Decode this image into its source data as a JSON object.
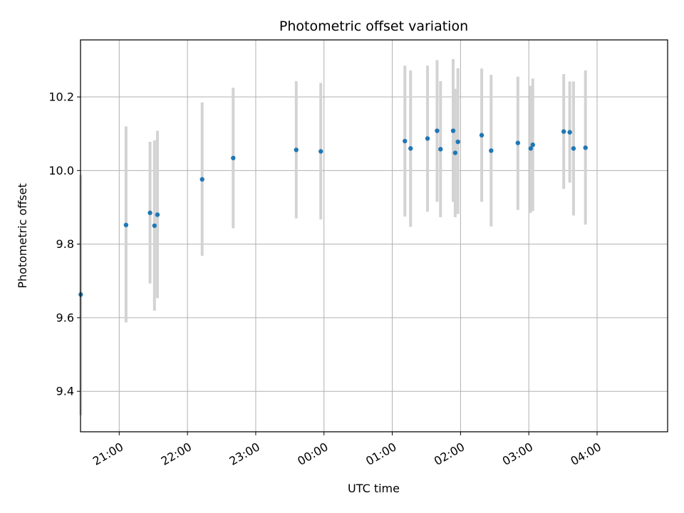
{
  "chart_data": {
    "type": "scatter",
    "title": "Photometric offset variation",
    "xlabel": "UTC time",
    "ylabel": "Photometric offset",
    "grid": true,
    "legend": "none",
    "marker_color": "#1f77b4",
    "errorbar_color": "#d3d3d3",
    "x_unit": "time of day (UTC), minutes after 20:00 on the first night shown",
    "xlim": [
      26,
      542
    ],
    "ylim": [
      9.29,
      10.355
    ],
    "x_ticks": [
      {
        "value": 60,
        "label": "21:00"
      },
      {
        "value": 120,
        "label": "22:00"
      },
      {
        "value": 180,
        "label": "23:00"
      },
      {
        "value": 240,
        "label": "00:00"
      },
      {
        "value": 300,
        "label": "01:00"
      },
      {
        "value": 360,
        "label": "02:00"
      },
      {
        "value": 420,
        "label": "03:00"
      },
      {
        "value": 480,
        "label": "04:00"
      }
    ],
    "y_ticks": [
      {
        "value": 9.4,
        "label": "9.4"
      },
      {
        "value": 9.6,
        "label": "9.6"
      },
      {
        "value": 9.8,
        "label": "9.8"
      },
      {
        "value": 10.0,
        "label": "10.0"
      },
      {
        "value": 10.2,
        "label": "10.2"
      }
    ],
    "points": [
      {
        "time": "20:26",
        "x": 26.2,
        "y": 9.663,
        "err_low": 9.335,
        "err_high": 9.988
      },
      {
        "time": "21:06",
        "x": 66.0,
        "y": 9.852,
        "err_low": 9.587,
        "err_high": 10.12
      },
      {
        "time": "21:27",
        "x": 87.1,
        "y": 9.885,
        "err_low": 9.693,
        "err_high": 10.078
      },
      {
        "time": "21:31",
        "x": 91.0,
        "y": 9.85,
        "err_low": 9.619,
        "err_high": 10.082
      },
      {
        "time": "21:34",
        "x": 93.6,
        "y": 9.88,
        "err_low": 9.653,
        "err_high": 10.108
      },
      {
        "time": "22:13",
        "x": 132.9,
        "y": 9.976,
        "err_low": 9.768,
        "err_high": 10.185
      },
      {
        "time": "22:40",
        "x": 160.2,
        "y": 10.034,
        "err_low": 9.843,
        "err_high": 10.225
      },
      {
        "time": "23:36",
        "x": 215.6,
        "y": 10.056,
        "err_low": 9.87,
        "err_high": 10.243
      },
      {
        "time": "23:57",
        "x": 237.2,
        "y": 10.052,
        "err_low": 9.867,
        "err_high": 10.238
      },
      {
        "time": "01:11",
        "x": 311.1,
        "y": 10.08,
        "err_low": 9.875,
        "err_high": 10.285
      },
      {
        "time": "01:16",
        "x": 316.1,
        "y": 10.06,
        "err_low": 9.847,
        "err_high": 10.272
      },
      {
        "time": "01:31",
        "x": 331.0,
        "y": 10.087,
        "err_low": 9.888,
        "err_high": 10.285
      },
      {
        "time": "01:39",
        "x": 339.4,
        "y": 10.108,
        "err_low": 9.915,
        "err_high": 10.3
      },
      {
        "time": "01:42",
        "x": 342.4,
        "y": 10.058,
        "err_low": 9.873,
        "err_high": 10.243
      },
      {
        "time": "01:53",
        "x": 353.5,
        "y": 10.108,
        "err_low": 9.915,
        "err_high": 10.303
      },
      {
        "time": "01:55",
        "x": 355.3,
        "y": 10.048,
        "err_low": 9.873,
        "err_high": 10.222
      },
      {
        "time": "01:58",
        "x": 357.7,
        "y": 10.078,
        "err_low": 9.882,
        "err_high": 10.278
      },
      {
        "time": "02:18",
        "x": 378.6,
        "y": 10.096,
        "err_low": 9.915,
        "err_high": 10.277
      },
      {
        "time": "02:27",
        "x": 386.9,
        "y": 10.054,
        "err_low": 9.848,
        "err_high": 10.26
      },
      {
        "time": "02:50",
        "x": 410.4,
        "y": 10.075,
        "err_low": 9.893,
        "err_high": 10.255
      },
      {
        "time": "03:02",
        "x": 421.7,
        "y": 10.06,
        "err_low": 9.885,
        "err_high": 10.23
      },
      {
        "time": "03:03",
        "x": 423.5,
        "y": 10.07,
        "err_low": 9.89,
        "err_high": 10.25
      },
      {
        "time": "03:31",
        "x": 450.7,
        "y": 10.106,
        "err_low": 9.95,
        "err_high": 10.262
      },
      {
        "time": "03:36",
        "x": 456.0,
        "y": 10.104,
        "err_low": 9.967,
        "err_high": 10.242
      },
      {
        "time": "03:39",
        "x": 459.3,
        "y": 10.06,
        "err_low": 9.878,
        "err_high": 10.242
      },
      {
        "time": "03:50",
        "x": 469.8,
        "y": 10.062,
        "err_low": 9.853,
        "err_high": 10.272
      }
    ]
  }
}
